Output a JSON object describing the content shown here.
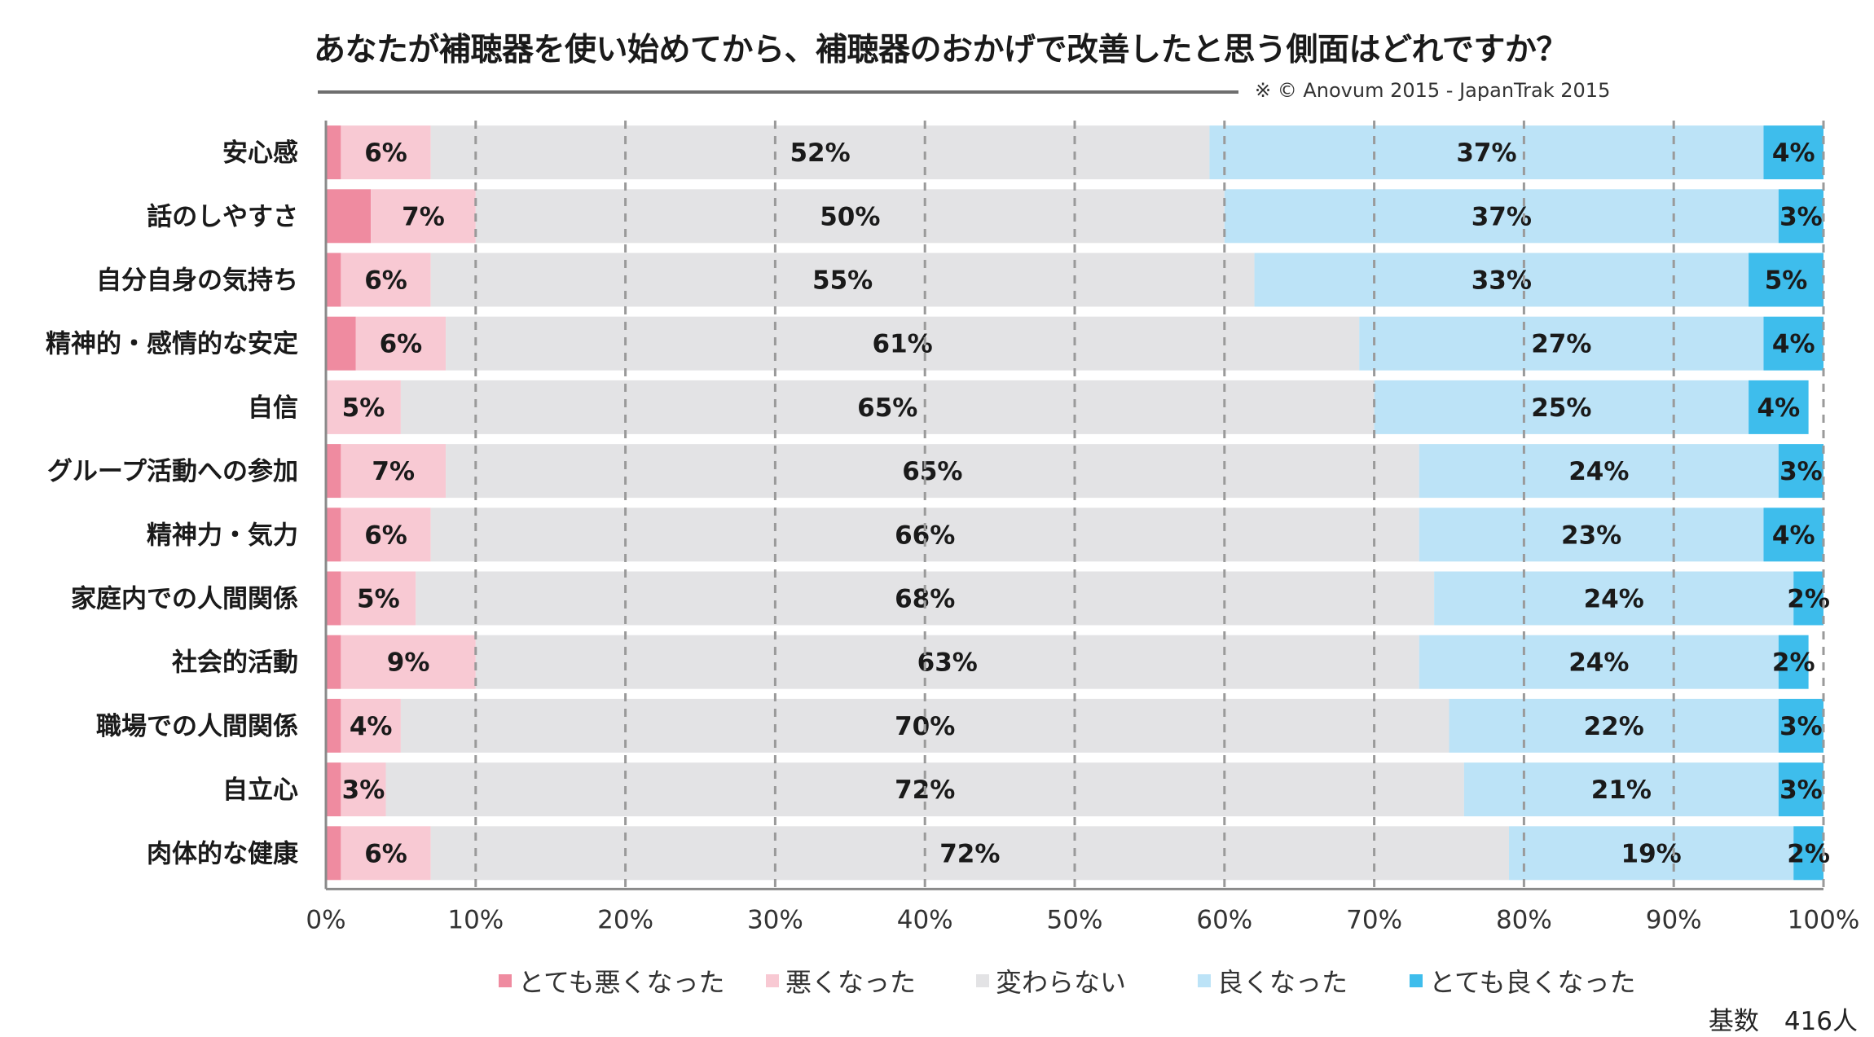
{
  "chart_data": {
    "type": "bar",
    "orientation": "horizontal",
    "stacked": true,
    "title": "あなたが補聴器を使い始めてから、補聴器のおかげで改善したと思う側面はどれですか？",
    "source_note": "※ © Anovum 2015 - JapanTrak 2015",
    "base_note": "基数　416人",
    "categories": [
      "安心感",
      "話のしやすさ",
      "自分自身の気持ち",
      "精神的・感情的な安定",
      "自信",
      "グループ活動への参加",
      "精神力・気力",
      "家庭内での人間関係",
      "社会的活動",
      "職場での人間関係",
      "自立心",
      "肉体的な健康"
    ],
    "series": [
      {
        "name": "とても悪くなった",
        "color": "#ef8ba0",
        "values": [
          1,
          3,
          1,
          2,
          0,
          1,
          1,
          1,
          1,
          1,
          1,
          1
        ],
        "labels": [
          "",
          "",
          "",
          "",
          "",
          "",
          "",
          "",
          "",
          "",
          "",
          ""
        ]
      },
      {
        "name": "悪くなった",
        "color": "#f8c9d3",
        "values": [
          6,
          7,
          6,
          6,
          5,
          7,
          6,
          5,
          9,
          4,
          3,
          6
        ],
        "labels": [
          "6%",
          "7%",
          "6%",
          "6%",
          "5%",
          "7%",
          "6%",
          "5%",
          "9%",
          "4%",
          "3%",
          "6%"
        ]
      },
      {
        "name": "変わらない",
        "color": "#e3e3e5",
        "values": [
          52,
          50,
          55,
          61,
          65,
          65,
          66,
          68,
          63,
          70,
          72,
          72
        ],
        "labels": [
          "52%",
          "50%",
          "55%",
          "61%",
          "65%",
          "65%",
          "66%",
          "68%",
          "63%",
          "70%",
          "72%",
          "72%"
        ]
      },
      {
        "name": "良くなった",
        "color": "#bce3f7",
        "values": [
          37,
          37,
          33,
          27,
          25,
          24,
          23,
          24,
          24,
          22,
          21,
          19
        ],
        "labels": [
          "37%",
          "37%",
          "33%",
          "27%",
          "25%",
          "24%",
          "23%",
          "24%",
          "24%",
          "22%",
          "21%",
          "19%"
        ]
      },
      {
        "name": "とても良くなった",
        "color": "#3ebdec",
        "values": [
          4,
          3,
          5,
          4,
          4,
          3,
          4,
          2,
          2,
          3,
          3,
          2
        ],
        "labels": [
          "4%",
          "3%",
          "5%",
          "4%",
          "4%",
          "3%",
          "4%",
          "2%",
          "2%",
          "3%",
          "3%",
          "2%"
        ]
      }
    ],
    "xlim": [
      0,
      100
    ],
    "xticks": [
      "0%",
      "10%",
      "20%",
      "30%",
      "40%",
      "50%",
      "60%",
      "70%",
      "80%",
      "90%",
      "100%"
    ],
    "grid": "vertical dashed",
    "legend_position": "bottom"
  }
}
